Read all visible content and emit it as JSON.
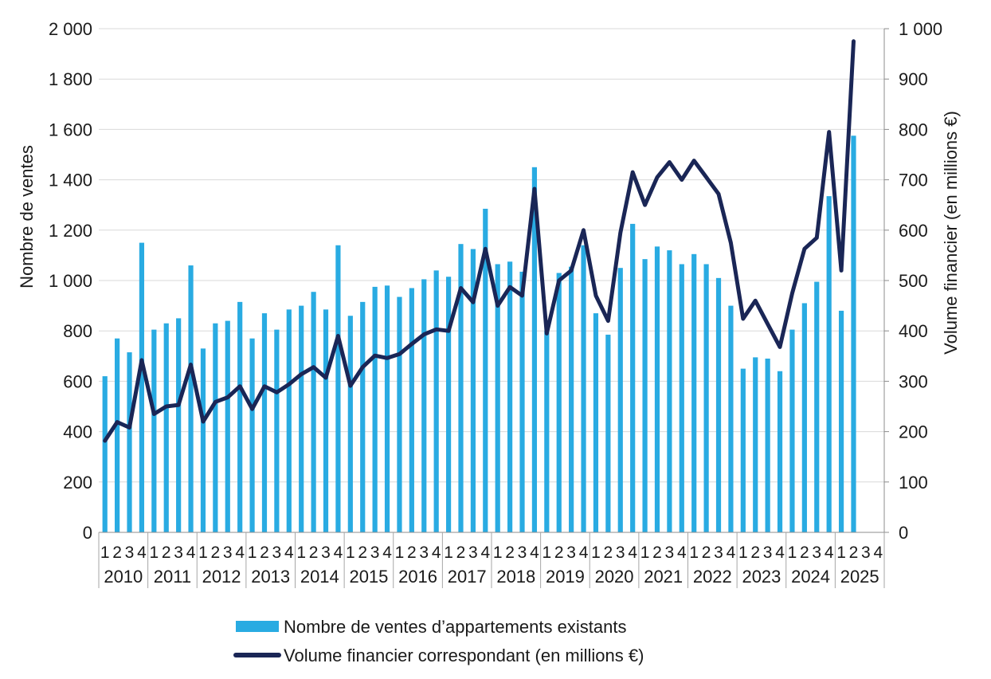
{
  "chart_data": {
    "type": "bar+line",
    "title": "",
    "ylabel_left": "Nombre de ventes",
    "ylabel_right": "Volume financier (en millions €)",
    "ylim_left": [
      0,
      2000
    ],
    "ylim_right": [
      0,
      1000
    ],
    "yticks_left": [
      "0",
      "200",
      "400",
      "600",
      "800",
      "1 000",
      "1 200",
      "1 400",
      "1 600",
      "1 800",
      "2 000"
    ],
    "yticks_right": [
      "0",
      "100",
      "200",
      "300",
      "400",
      "500",
      "600",
      "700",
      "800",
      "900",
      "1 000"
    ],
    "years": [
      "2010",
      "2011",
      "2012",
      "2013",
      "2014",
      "2015",
      "2016",
      "2017",
      "2018",
      "2019",
      "2020",
      "2021",
      "2022",
      "2023",
      "2024",
      "2025"
    ],
    "quarter_labels": [
      "1",
      "2",
      "3",
      "4"
    ],
    "grid": true,
    "legend_position": "bottom",
    "series": [
      {
        "name": "Nombre de ventes d’appartements existants",
        "type": "bar",
        "axis": "left",
        "color": "#29abe2",
        "values": [
          620,
          770,
          715,
          1150,
          805,
          830,
          850,
          1060,
          730,
          830,
          840,
          915,
          770,
          870,
          805,
          885,
          900,
          955,
          885,
          1140,
          860,
          915,
          975,
          980,
          935,
          970,
          1005,
          1040,
          1015,
          1145,
          1125,
          1285,
          1065,
          1075,
          1035,
          1450,
          800,
          1030,
          1055,
          1140,
          870,
          785,
          1050,
          1225,
          1085,
          1135,
          1120,
          1065,
          1105,
          1065,
          1010,
          900,
          650,
          695,
          690,
          640,
          805,
          910,
          995,
          1335,
          880,
          1575,
          null,
          null
        ]
      },
      {
        "name": "Volume financier correspondant (en millions €)",
        "type": "line",
        "axis": "right",
        "color": "#1a2656",
        "values": [
          182,
          219,
          208,
          342,
          235,
          250,
          253,
          333,
          220,
          259,
          268,
          290,
          245,
          290,
          278,
          294,
          314,
          328,
          307,
          390,
          291,
          328,
          351,
          346,
          354,
          374,
          393,
          403,
          400,
          485,
          457,
          563,
          450,
          487,
          470,
          682,
          395,
          500,
          520,
          600,
          470,
          420,
          595,
          715,
          650,
          705,
          735,
          700,
          738,
          705,
          672,
          575,
          424,
          460,
          414,
          368,
          475,
          563,
          585,
          795,
          520,
          975,
          null,
          null
        ]
      }
    ]
  }
}
